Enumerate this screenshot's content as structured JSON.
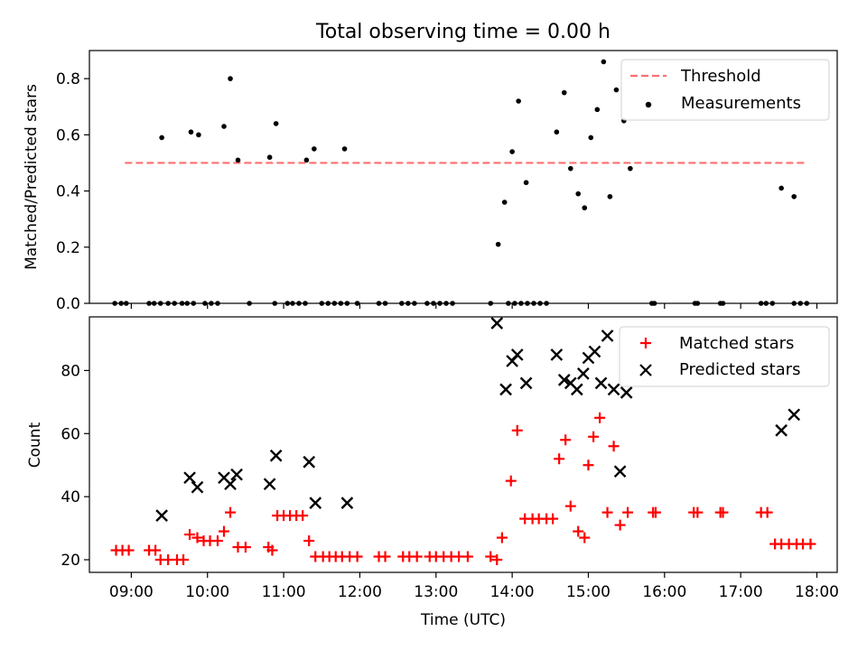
{
  "figure": {
    "title": "Total observing time = 0.00 h"
  },
  "chart_data": [
    {
      "type": "scatter",
      "panel": "top",
      "title": "Total observing time = 0.00 h",
      "xlabel": "",
      "ylabel": "Matched/Predicted stars",
      "xlim": [
        "08:27",
        "18:16"
      ],
      "ylim": [
        0,
        0.9
      ],
      "x_ticks": [
        "09:00",
        "10:00",
        "11:00",
        "12:00",
        "13:00",
        "14:00",
        "15:00",
        "16:00",
        "17:00",
        "18:00"
      ],
      "y_ticks": [
        "0.0",
        "0.2",
        "0.4",
        "0.6",
        "0.8"
      ],
      "grid": false,
      "legend_position": "top-right",
      "threshold": {
        "name": "Threshold",
        "value": 0.5,
        "x_start": "08:55",
        "x_end": "17:50",
        "color": "#ff6f6f",
        "style": "dashed"
      },
      "series": [
        {
          "name": "Measurements",
          "color": "#000000",
          "marker": "dot",
          "points": [
            [
              "08:47",
              0
            ],
            [
              "08:52",
              0
            ],
            [
              "08:56",
              0
            ],
            [
              "09:14",
              0
            ],
            [
              "09:18",
              0
            ],
            [
              "09:23",
              0
            ],
            [
              "09:29",
              0
            ],
            [
              "09:34",
              0
            ],
            [
              "09:40",
              0
            ],
            [
              "09:44",
              0
            ],
            [
              "09:49",
              0
            ],
            [
              "09:58",
              0
            ],
            [
              "10:03",
              0
            ],
            [
              "10:08",
              0
            ],
            [
              "10:33",
              0
            ],
            [
              "10:53",
              0
            ],
            [
              "11:03",
              0
            ],
            [
              "11:07",
              0
            ],
            [
              "11:12",
              0
            ],
            [
              "11:17",
              0
            ],
            [
              "11:30",
              0
            ],
            [
              "11:35",
              0
            ],
            [
              "11:40",
              0
            ],
            [
              "11:45",
              0
            ],
            [
              "11:50",
              0
            ],
            [
              "11:58",
              0
            ],
            [
              "12:15",
              0
            ],
            [
              "12:20",
              0
            ],
            [
              "12:33",
              0
            ],
            [
              "12:38",
              0
            ],
            [
              "12:43",
              0
            ],
            [
              "12:53",
              0
            ],
            [
              "12:58",
              0
            ],
            [
              "13:03",
              0
            ],
            [
              "13:08",
              0
            ],
            [
              "13:13",
              0
            ],
            [
              "13:43",
              0
            ],
            [
              "13:57",
              0
            ],
            [
              "14:02",
              0
            ],
            [
              "14:07",
              0
            ],
            [
              "14:12",
              0
            ],
            [
              "14:17",
              0
            ],
            [
              "14:22",
              0
            ],
            [
              "14:27",
              0
            ],
            [
              "15:50",
              0
            ],
            [
              "15:52",
              0
            ],
            [
              "16:24",
              0
            ],
            [
              "16:26",
              0
            ],
            [
              "16:44",
              0
            ],
            [
              "16:46",
              0
            ],
            [
              "17:16",
              0
            ],
            [
              "17:20",
              0
            ],
            [
              "17:25",
              0
            ],
            [
              "17:42",
              0
            ],
            [
              "17:47",
              0
            ],
            [
              "17:52",
              0
            ],
            [
              "09:24",
              0.59
            ],
            [
              "09:47",
              0.61
            ],
            [
              "09:53",
              0.6
            ],
            [
              "10:13",
              0.63
            ],
            [
              "10:18",
              0.8
            ],
            [
              "10:24",
              0.51
            ],
            [
              "10:49",
              0.52
            ],
            [
              "10:54",
              0.64
            ],
            [
              "11:18",
              0.51
            ],
            [
              "11:24",
              0.55
            ],
            [
              "11:48",
              0.55
            ],
            [
              "13:49",
              0.21
            ],
            [
              "13:54",
              0.36
            ],
            [
              "14:00",
              0.54
            ],
            [
              "14:05",
              0.72
            ],
            [
              "14:11",
              0.43
            ],
            [
              "14:35",
              0.61
            ],
            [
              "14:41",
              0.75
            ],
            [
              "14:46",
              0.48
            ],
            [
              "14:52",
              0.39
            ],
            [
              "14:57",
              0.34
            ],
            [
              "15:02",
              0.59
            ],
            [
              "15:07",
              0.69
            ],
            [
              "15:12",
              0.86
            ],
            [
              "15:17",
              0.38
            ],
            [
              "15:22",
              0.76
            ],
            [
              "15:28",
              0.65
            ],
            [
              "15:33",
              0.48
            ],
            [
              "17:32",
              0.41
            ],
            [
              "17:42",
              0.38
            ]
          ]
        }
      ]
    },
    {
      "type": "scatter",
      "panel": "bottom",
      "title": "",
      "xlabel": "Time (UTC)",
      "ylabel": "Count",
      "xlim": [
        "08:27",
        "18:16"
      ],
      "ylim": [
        16,
        97
      ],
      "x_ticks": [
        "09:00",
        "10:00",
        "11:00",
        "12:00",
        "13:00",
        "14:00",
        "15:00",
        "16:00",
        "17:00",
        "18:00"
      ],
      "y_ticks": [
        "20",
        "40",
        "60",
        "80"
      ],
      "grid": false,
      "legend_position": "top-right",
      "series": [
        {
          "name": "Matched stars",
          "color": "#ff0000",
          "marker": "plus",
          "points": [
            [
              "08:48",
              23
            ],
            [
              "08:53",
              23
            ],
            [
              "08:58",
              23
            ],
            [
              "09:14",
              23
            ],
            [
              "09:19",
              23
            ],
            [
              "09:23",
              20
            ],
            [
              "09:29",
              20
            ],
            [
              "09:36",
              20
            ],
            [
              "09:41",
              20
            ],
            [
              "09:46",
              28
            ],
            [
              "09:52",
              27
            ],
            [
              "09:57",
              26
            ],
            [
              "10:02",
              26
            ],
            [
              "10:08",
              26
            ],
            [
              "10:13",
              29
            ],
            [
              "10:18",
              35
            ],
            [
              "10:24",
              24
            ],
            [
              "10:30",
              24
            ],
            [
              "10:48",
              24
            ],
            [
              "10:51",
              23
            ],
            [
              "10:55",
              34
            ],
            [
              "11:00",
              34
            ],
            [
              "11:05",
              34
            ],
            [
              "11:10",
              34
            ],
            [
              "11:15",
              34
            ],
            [
              "11:20",
              26
            ],
            [
              "11:25",
              21
            ],
            [
              "11:31",
              21
            ],
            [
              "11:36",
              21
            ],
            [
              "11:41",
              21
            ],
            [
              "11:46",
              21
            ],
            [
              "11:52",
              21
            ],
            [
              "11:58",
              21
            ],
            [
              "12:15",
              21
            ],
            [
              "12:20",
              21
            ],
            [
              "12:34",
              21
            ],
            [
              "12:39",
              21
            ],
            [
              "12:45",
              21
            ],
            [
              "12:55",
              21
            ],
            [
              "13:00",
              21
            ],
            [
              "13:06",
              21
            ],
            [
              "13:12",
              21
            ],
            [
              "13:18",
              21
            ],
            [
              "13:25",
              21
            ],
            [
              "13:43",
              21
            ],
            [
              "13:48",
              20
            ],
            [
              "13:52",
              27
            ],
            [
              "13:59",
              45
            ],
            [
              "14:04",
              61
            ],
            [
              "14:10",
              33
            ],
            [
              "14:16",
              33
            ],
            [
              "14:21",
              33
            ],
            [
              "14:27",
              33
            ],
            [
              "14:32",
              33
            ],
            [
              "14:37",
              52
            ],
            [
              "14:42",
              58
            ],
            [
              "14:46",
              37
            ],
            [
              "14:52",
              29
            ],
            [
              "14:57",
              27
            ],
            [
              "15:00",
              50
            ],
            [
              "15:04",
              59
            ],
            [
              "15:09",
              65
            ],
            [
              "15:15",
              35
            ],
            [
              "15:20",
              56
            ],
            [
              "15:25",
              31
            ],
            [
              "15:31",
              35
            ],
            [
              "15:51",
              35
            ],
            [
              "15:53",
              35
            ],
            [
              "16:23",
              35
            ],
            [
              "16:26",
              35
            ],
            [
              "16:44",
              35
            ],
            [
              "16:46",
              35
            ],
            [
              "17:16",
              35
            ],
            [
              "17:21",
              35
            ],
            [
              "17:27",
              25
            ],
            [
              "17:32",
              25
            ],
            [
              "17:38",
              25
            ],
            [
              "17:44",
              25
            ],
            [
              "17:49",
              25
            ],
            [
              "17:55",
              25
            ]
          ]
        },
        {
          "name": "Predicted stars",
          "color": "#000000",
          "marker": "cross",
          "points": [
            [
              "09:24",
              34
            ],
            [
              "09:46",
              46
            ],
            [
              "09:52",
              43
            ],
            [
              "10:13",
              46
            ],
            [
              "10:18",
              44
            ],
            [
              "10:23",
              47
            ],
            [
              "10:49",
              44
            ],
            [
              "10:54",
              53
            ],
            [
              "11:20",
              51
            ],
            [
              "11:25",
              38
            ],
            [
              "11:50",
              38
            ],
            [
              "13:48",
              95
            ],
            [
              "13:55",
              74
            ],
            [
              "14:00",
              83
            ],
            [
              "14:04",
              85
            ],
            [
              "14:11",
              76
            ],
            [
              "14:35",
              85
            ],
            [
              "14:41",
              77
            ],
            [
              "14:46",
              76
            ],
            [
              "14:51",
              74
            ],
            [
              "14:56",
              79
            ],
            [
              "15:00",
              84
            ],
            [
              "15:05",
              86
            ],
            [
              "15:10",
              76
            ],
            [
              "15:15",
              91
            ],
            [
              "15:20",
              74
            ],
            [
              "15:25",
              48
            ],
            [
              "15:30",
              73
            ],
            [
              "17:32",
              61
            ],
            [
              "17:42",
              66
            ]
          ]
        }
      ]
    }
  ]
}
